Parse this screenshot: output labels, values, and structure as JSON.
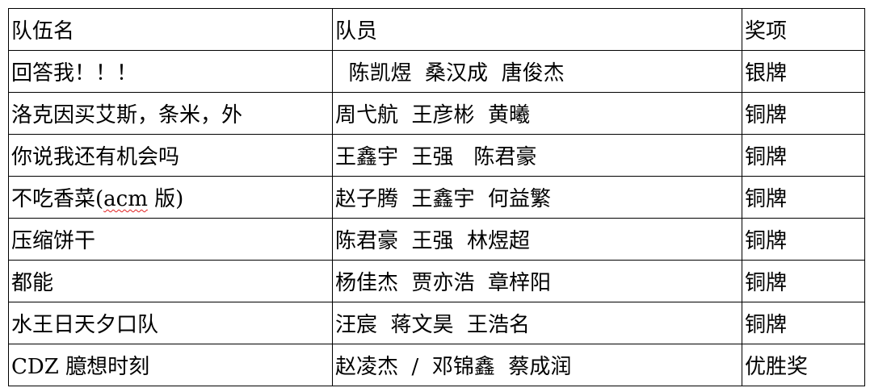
{
  "header": {
    "team": "队伍名",
    "members": "队员",
    "award": "奖项"
  },
  "rows": [
    {
      "team": "回答我！！！",
      "members": "  陈凯煜  桑汉成  唐俊杰",
      "award": "银牌"
    },
    {
      "team": "洛克因买艾斯，条米，外",
      "members": "周弋航  王彦彬  黄曦",
      "award": "铜牌"
    },
    {
      "team": "你说我还有机会吗",
      "members": "王鑫宇  王强   陈君豪",
      "award": "铜牌"
    },
    {
      "team_pre": "不吃香菜(",
      "team_mark": "acm",
      "team_post": " 版)",
      "members": "赵子腾  王鑫宇  何益繁",
      "award": "铜牌"
    },
    {
      "team": "压缩饼干",
      "members": "陈君豪  王强  林煜超",
      "award": "铜牌"
    },
    {
      "team": "都能",
      "members": "杨佳杰  贾亦浩  章梓阳",
      "award": "铜牌"
    },
    {
      "team": "水王日天夕口队",
      "members": "汪宸  蒋文昊  王浩名",
      "award": "铜牌"
    },
    {
      "team": "CDZ 臆想时刻",
      "members": "赵凌杰  /  邓锦鑫  蔡成润",
      "award": "优胜奖"
    }
  ]
}
